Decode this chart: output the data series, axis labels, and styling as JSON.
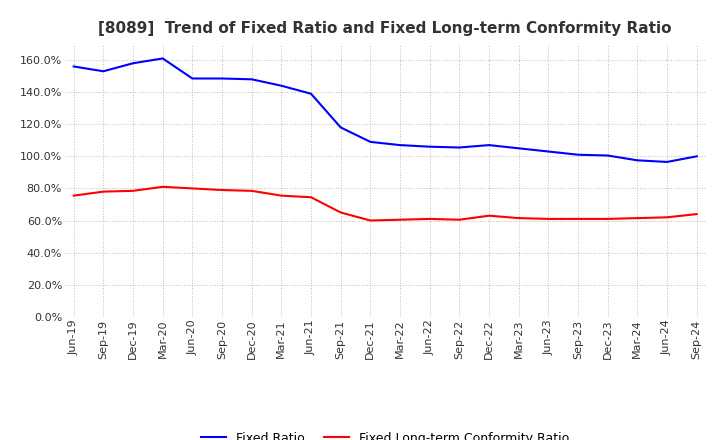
{
  "title": "[8089]  Trend of Fixed Ratio and Fixed Long-term Conformity Ratio",
  "fixed_ratio": {
    "label": "Fixed Ratio",
    "color": "#0000FF",
    "data": [
      [
        "Jun-19",
        156.0
      ],
      [
        "Sep-19",
        153.0
      ],
      [
        "Dec-19",
        158.0
      ],
      [
        "Mar-20",
        161.0
      ],
      [
        "Jun-20",
        148.5
      ],
      [
        "Sep-20",
        148.5
      ],
      [
        "Dec-20",
        148.0
      ],
      [
        "Mar-21",
        144.0
      ],
      [
        "Jun-21",
        139.0
      ],
      [
        "Sep-21",
        118.0
      ],
      [
        "Dec-21",
        109.0
      ],
      [
        "Mar-22",
        107.0
      ],
      [
        "Jun-22",
        106.0
      ],
      [
        "Sep-22",
        105.5
      ],
      [
        "Dec-22",
        107.0
      ],
      [
        "Mar-23",
        105.0
      ],
      [
        "Jun-23",
        103.0
      ],
      [
        "Sep-23",
        101.0
      ],
      [
        "Dec-23",
        100.5
      ],
      [
        "Mar-24",
        97.5
      ],
      [
        "Jun-24",
        96.5
      ],
      [
        "Sep-24",
        100.0
      ]
    ]
  },
  "fixed_lt_ratio": {
    "label": "Fixed Long-term Conformity Ratio",
    "color": "#FF0000",
    "data": [
      [
        "Jun-19",
        75.5
      ],
      [
        "Sep-19",
        78.0
      ],
      [
        "Dec-19",
        78.5
      ],
      [
        "Mar-20",
        81.0
      ],
      [
        "Jun-20",
        80.0
      ],
      [
        "Sep-20",
        79.0
      ],
      [
        "Dec-20",
        78.5
      ],
      [
        "Mar-21",
        75.5
      ],
      [
        "Jun-21",
        74.5
      ],
      [
        "Sep-21",
        65.0
      ],
      [
        "Dec-21",
        60.0
      ],
      [
        "Mar-22",
        60.5
      ],
      [
        "Jun-22",
        61.0
      ],
      [
        "Sep-22",
        60.5
      ],
      [
        "Dec-22",
        63.0
      ],
      [
        "Mar-23",
        61.5
      ],
      [
        "Jun-23",
        61.0
      ],
      [
        "Sep-23",
        61.0
      ],
      [
        "Dec-23",
        61.0
      ],
      [
        "Mar-24",
        61.5
      ],
      [
        "Jun-24",
        62.0
      ],
      [
        "Sep-24",
        64.0
      ]
    ]
  },
  "ylim": [
    0,
    170
  ],
  "yticks": [
    0,
    20,
    40,
    60,
    80,
    100,
    120,
    140,
    160
  ],
  "background_color": "#FFFFFF",
  "plot_bg_color": "#FFFFFF",
  "grid_color": "#BBBBBB",
  "title_fontsize": 11,
  "legend_fontsize": 9,
  "tick_fontsize": 8,
  "title_color": "#333333",
  "line_width": 1.5
}
